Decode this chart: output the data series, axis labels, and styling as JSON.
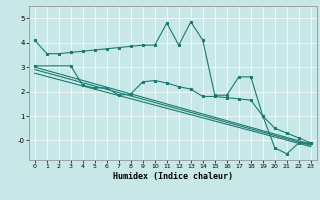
{
  "xlabel": "Humidex (Indice chaleur)",
  "bg_color": "#c8e8e8",
  "line_color": "#1a7a6e",
  "xlim": [
    -0.5,
    23.5
  ],
  "ylim": [
    -0.8,
    5.5
  ],
  "yticks": [
    0,
    1,
    2,
    3,
    4,
    5
  ],
  "ytick_labels": [
    "-0",
    "1",
    "2",
    "3",
    "4",
    "5"
  ],
  "xticks": [
    0,
    1,
    2,
    3,
    4,
    5,
    6,
    7,
    8,
    9,
    10,
    11,
    12,
    13,
    14,
    15,
    16,
    17,
    18,
    19,
    20,
    21,
    22,
    23
  ],
  "line1_x": [
    0,
    1,
    2,
    3,
    4,
    5,
    6,
    7,
    8,
    9,
    10,
    11,
    12,
    13,
    14,
    15,
    16,
    17,
    18,
    19,
    20,
    21,
    22,
    23
  ],
  "line1_y": [
    4.1,
    3.55,
    3.55,
    3.6,
    3.65,
    3.7,
    3.75,
    3.8,
    3.85,
    3.9,
    3.9,
    4.8,
    3.9,
    4.85,
    4.1,
    1.85,
    1.85,
    2.6,
    2.6,
    1.0,
    -0.3,
    -0.55,
    -0.1,
    -0.1
  ],
  "line2_x": [
    0,
    3,
    4,
    5,
    6,
    7,
    8,
    9,
    10,
    11,
    12,
    13,
    14,
    15,
    16,
    17,
    18,
    19,
    20,
    21,
    22,
    23
  ],
  "line2_y": [
    3.05,
    3.05,
    2.25,
    2.15,
    2.15,
    1.85,
    1.9,
    2.4,
    2.45,
    2.35,
    2.2,
    2.1,
    1.8,
    1.8,
    1.75,
    1.7,
    1.65,
    1.0,
    0.5,
    0.3,
    0.1,
    -0.1
  ],
  "line3_x": [
    0,
    23
  ],
  "line3_y": [
    3.0,
    -0.15
  ],
  "line4_x": [
    0,
    23
  ],
  "line4_y": [
    2.9,
    -0.2
  ],
  "line5_x": [
    0,
    23
  ],
  "line5_y": [
    2.75,
    -0.25
  ]
}
